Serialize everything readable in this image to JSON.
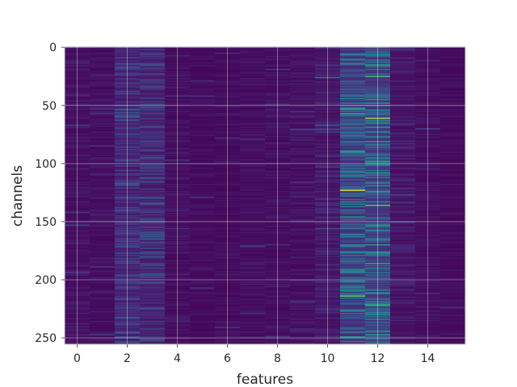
{
  "chart_data": {
    "type": "heatmap",
    "title": "",
    "xlabel": "features",
    "ylabel": "channels",
    "xlim": [
      -0.5,
      15.5
    ],
    "ylim": [
      255.5,
      -0.5
    ],
    "y_inverted": true,
    "grid": true,
    "colormap": "viridis",
    "n_rows": 256,
    "n_cols": 16,
    "x_ticks": [
      0,
      2,
      4,
      6,
      8,
      10,
      12,
      14
    ],
    "y_ticks": [
      0,
      50,
      100,
      150,
      200,
      250
    ],
    "column_intensity": [
      0.06,
      0.05,
      0.16,
      0.16,
      0.05,
      0.04,
      0.04,
      0.05,
      0.05,
      0.06,
      0.09,
      0.3,
      0.32,
      0.08,
      0.05,
      0.04
    ],
    "highlights": [
      {
        "feature": 11,
        "channel": 123,
        "value": 1.0
      },
      {
        "feature": 11,
        "channel": 53,
        "value": 0.65
      },
      {
        "feature": 11,
        "channel": 57,
        "value": 0.6
      },
      {
        "feature": 11,
        "channel": 90,
        "value": 0.6
      },
      {
        "feature": 11,
        "channel": 146,
        "value": 0.55
      },
      {
        "feature": 11,
        "channel": 176,
        "value": 0.5
      },
      {
        "feature": 11,
        "channel": 214,
        "value": 0.75
      },
      {
        "feature": 11,
        "channel": 249,
        "value": 0.5
      },
      {
        "feature": 12,
        "channel": 15,
        "value": 0.55
      },
      {
        "feature": 12,
        "channel": 25,
        "value": 0.7
      },
      {
        "feature": 12,
        "channel": 48,
        "value": 0.55
      },
      {
        "feature": 12,
        "channel": 61,
        "value": 0.85
      },
      {
        "feature": 12,
        "channel": 98,
        "value": 0.6
      },
      {
        "feature": 12,
        "channel": 108,
        "value": 0.55
      },
      {
        "feature": 12,
        "channel": 124,
        "value": 0.55
      },
      {
        "feature": 12,
        "channel": 136,
        "value": 0.75
      },
      {
        "feature": 12,
        "channel": 170,
        "value": 0.55
      },
      {
        "feature": 12,
        "channel": 186,
        "value": 0.6
      },
      {
        "feature": 12,
        "channel": 222,
        "value": 0.65
      },
      {
        "feature": 12,
        "channel": 244,
        "value": 0.5
      },
      {
        "feature": 10,
        "channel": 26,
        "value": 0.4
      },
      {
        "feature": 3,
        "channel": 165,
        "value": 0.35
      },
      {
        "feature": 2,
        "channel": 60,
        "value": 0.3
      }
    ]
  }
}
